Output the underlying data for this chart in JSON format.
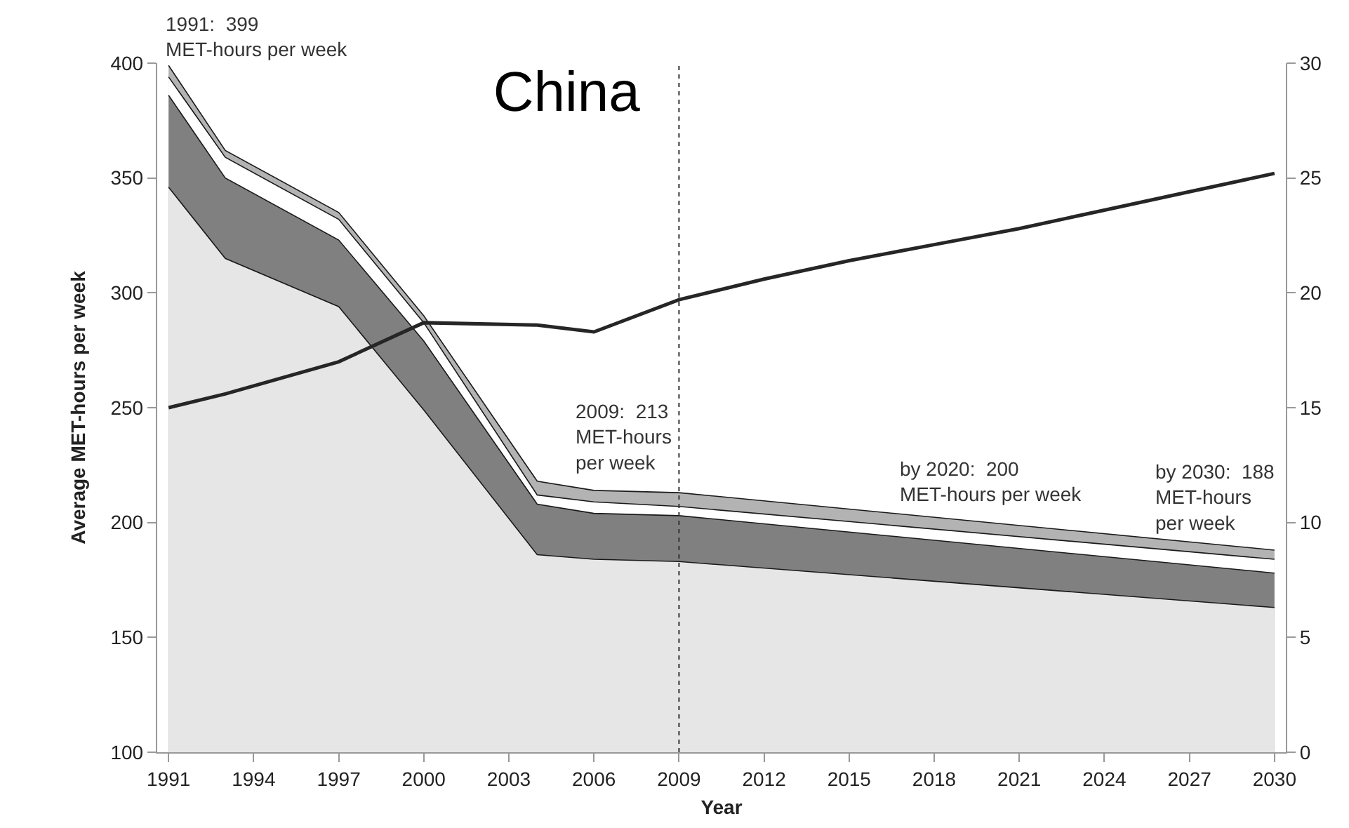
{
  "chart_data": {
    "type": "area",
    "title": "China",
    "xlabel": "Year",
    "ylabel": "Average MET-hours per week",
    "x": [
      1991,
      1993,
      1997,
      2000,
      2004,
      2006,
      2009,
      2030
    ],
    "series": [
      {
        "color": "#b3b3b3",
        "values": [
          399,
          362,
          335,
          290,
          218,
          214,
          213,
          188
        ]
      },
      {
        "color": "#ffffff",
        "values": [
          394,
          359,
          332,
          287,
          212,
          209,
          207,
          184
        ]
      },
      {
        "color": "#808080",
        "values": [
          386,
          350,
          323,
          279,
          208,
          204,
          203,
          178
        ]
      },
      {
        "color": "#e6e6e6",
        "values": [
          346,
          315,
          294,
          249,
          186,
          184,
          183,
          163
        ]
      },
      {
        "type": "line",
        "axis": "y2",
        "color": "#262626",
        "x": [
          1991,
          1993,
          1997,
          2000,
          2004,
          2006,
          2009,
          2012,
          2015,
          2018,
          2021,
          2024,
          2027,
          2030
        ],
        "values": [
          15,
          15.6,
          17,
          18.7,
          18.6,
          18.3,
          19.7,
          20.6,
          21.4,
          22.1,
          22.8,
          23.6,
          24.4,
          25.2
        ]
      }
    ],
    "xlim": [
      1990.6,
      2030.4
    ],
    "xticks": [
      1991,
      1994,
      1997,
      2000,
      2003,
      2006,
      2009,
      2012,
      2015,
      2018,
      2021,
      2024,
      2027,
      2030
    ],
    "ylim": [
      100,
      400
    ],
    "yticks": [
      100,
      150,
      200,
      250,
      300,
      350,
      400
    ],
    "y2lim": [
      0,
      30
    ],
    "y2ticks": [
      0,
      5,
      10,
      15,
      20,
      25,
      30
    ],
    "ref_lines": [
      {
        "axis": "x",
        "value": 2009,
        "color": "#333333",
        "line_style": "dotted"
      }
    ],
    "annotations": [
      {
        "text": "1991:  399\nMET-hours per week",
        "x": 1991,
        "y": 399
      },
      {
        "text": "2009:  213\nMET-hours\nper week",
        "x": 2009,
        "y": 213
      },
      {
        "text": "by 2020:  200\nMET-hours per week",
        "x": 2020,
        "y": 200
      },
      {
        "text": "by 2030:  188\nMET-hours\nper week",
        "x": 2030,
        "y": 188
      }
    ],
    "grid": false,
    "marker": "none"
  }
}
